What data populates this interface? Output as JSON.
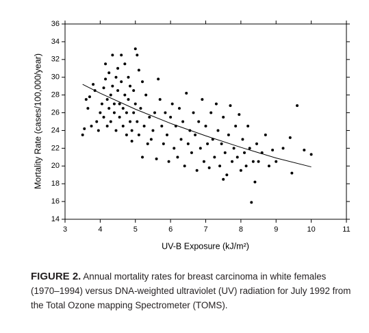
{
  "chart_data": {
    "type": "scatter",
    "xlabel": "UV-B Exposure (kJ/m²)",
    "ylabel": "Mortality Rate (cases/100,000/year)",
    "xlim": [
      3,
      11
    ],
    "ylim": [
      14,
      36
    ],
    "xticks": [
      3,
      4,
      5,
      6,
      7,
      8,
      9,
      10,
      11
    ],
    "yticks": [
      14,
      16,
      18,
      20,
      22,
      24,
      26,
      28,
      30,
      32,
      34,
      36
    ],
    "color": "#000000",
    "x": [
      3.5,
      3.55,
      3.6,
      3.65,
      3.7,
      3.75,
      3.8,
      3.85,
      3.9,
      3.95,
      4.0,
      4.05,
      4.1,
      4.1,
      4.15,
      4.15,
      4.2,
      4.2,
      4.25,
      4.25,
      4.3,
      4.3,
      4.35,
      4.35,
      4.4,
      4.4,
      4.45,
      4.45,
      4.5,
      4.5,
      4.55,
      4.55,
      4.6,
      4.6,
      4.65,
      4.65,
      4.7,
      4.7,
      4.75,
      4.75,
      4.8,
      4.8,
      4.85,
      4.85,
      4.9,
      4.9,
      4.95,
      4.95,
      5.0,
      5.0,
      5.05,
      5.05,
      5.1,
      5.1,
      5.15,
      5.2,
      5.2,
      5.25,
      5.3,
      5.35,
      5.4,
      5.45,
      5.5,
      5.55,
      5.6,
      5.65,
      5.7,
      5.75,
      5.8,
      5.85,
      5.9,
      5.95,
      6.0,
      6.05,
      6.1,
      6.15,
      6.2,
      6.25,
      6.3,
      6.35,
      6.4,
      6.45,
      6.5,
      6.55,
      6.6,
      6.65,
      6.7,
      6.75,
      6.8,
      6.85,
      6.9,
      6.95,
      7.0,
      7.05,
      7.1,
      7.15,
      7.2,
      7.25,
      7.3,
      7.35,
      7.4,
      7.45,
      7.5,
      7.5,
      7.55,
      7.6,
      7.65,
      7.7,
      7.75,
      7.8,
      7.85,
      7.9,
      7.95,
      8.0,
      8.05,
      8.1,
      8.15,
      8.2,
      8.25,
      8.3,
      8.35,
      8.4,
      8.45,
      8.5,
      8.6,
      8.7,
      8.8,
      8.9,
      9.0,
      9.2,
      9.4,
      9.45,
      9.6,
      9.8,
      10.0
    ],
    "values": [
      23.5,
      24.2,
      27.5,
      26.5,
      27.8,
      24.5,
      29.2,
      28.5,
      25.0,
      24.0,
      26.0,
      27.0,
      28.8,
      25.5,
      31.5,
      29.8,
      27.5,
      24.5,
      26.5,
      30.5,
      28.0,
      25.0,
      32.5,
      29.0,
      27.0,
      26.0,
      30.0,
      24.0,
      31.0,
      28.5,
      27.0,
      25.5,
      32.5,
      29.5,
      26.5,
      24.5,
      31.5,
      28.0,
      26.0,
      23.5,
      30.0,
      27.5,
      25.0,
      29.0,
      24.0,
      22.8,
      28.5,
      26.0,
      33.2,
      27.0,
      32.5,
      25.0,
      30.8,
      23.5,
      26.5,
      29.5,
      21.0,
      24.5,
      28.0,
      22.5,
      25.5,
      23.0,
      24.0,
      26.0,
      20.8,
      29.8,
      27.5,
      24.5,
      22.5,
      26.0,
      23.5,
      20.5,
      25.5,
      27.0,
      22.0,
      24.5,
      21.0,
      26.5,
      23.0,
      25.0,
      20.0,
      28.2,
      22.5,
      24.0,
      21.5,
      26.0,
      23.5,
      19.5,
      25.0,
      22.0,
      27.5,
      20.5,
      24.5,
      22.5,
      19.8,
      26.0,
      23.0,
      21.0,
      27.0,
      24.0,
      20.0,
      22.5,
      18.5,
      25.5,
      21.5,
      19.0,
      23.5,
      26.8,
      20.5,
      22.0,
      24.5,
      21.0,
      25.8,
      19.5,
      23.0,
      21.5,
      20.0,
      24.5,
      22.0,
      15.9,
      20.5,
      18.2,
      22.5,
      20.5,
      21.5,
      23.5,
      20.0,
      21.8,
      20.5,
      22.0,
      23.2,
      19.2,
      26.8,
      21.8,
      21.3
    ],
    "trend_x": [
      3.5,
      4,
      5,
      6,
      7,
      8,
      9,
      10
    ],
    "trend_values": [
      29.2,
      28.2,
      26.4,
      24.8,
      23.4,
      22.1,
      20.9,
      19.9
    ]
  },
  "caption": {
    "label": "FIGURE 2.",
    "text": "Annual mortality rates for breast carcinoma in white females (1970–1994) versus DNA-weighted ultraviolet (UV) radiation for July 1992 from the Total Ozone mapping Spectrometer (TOMS)."
  }
}
